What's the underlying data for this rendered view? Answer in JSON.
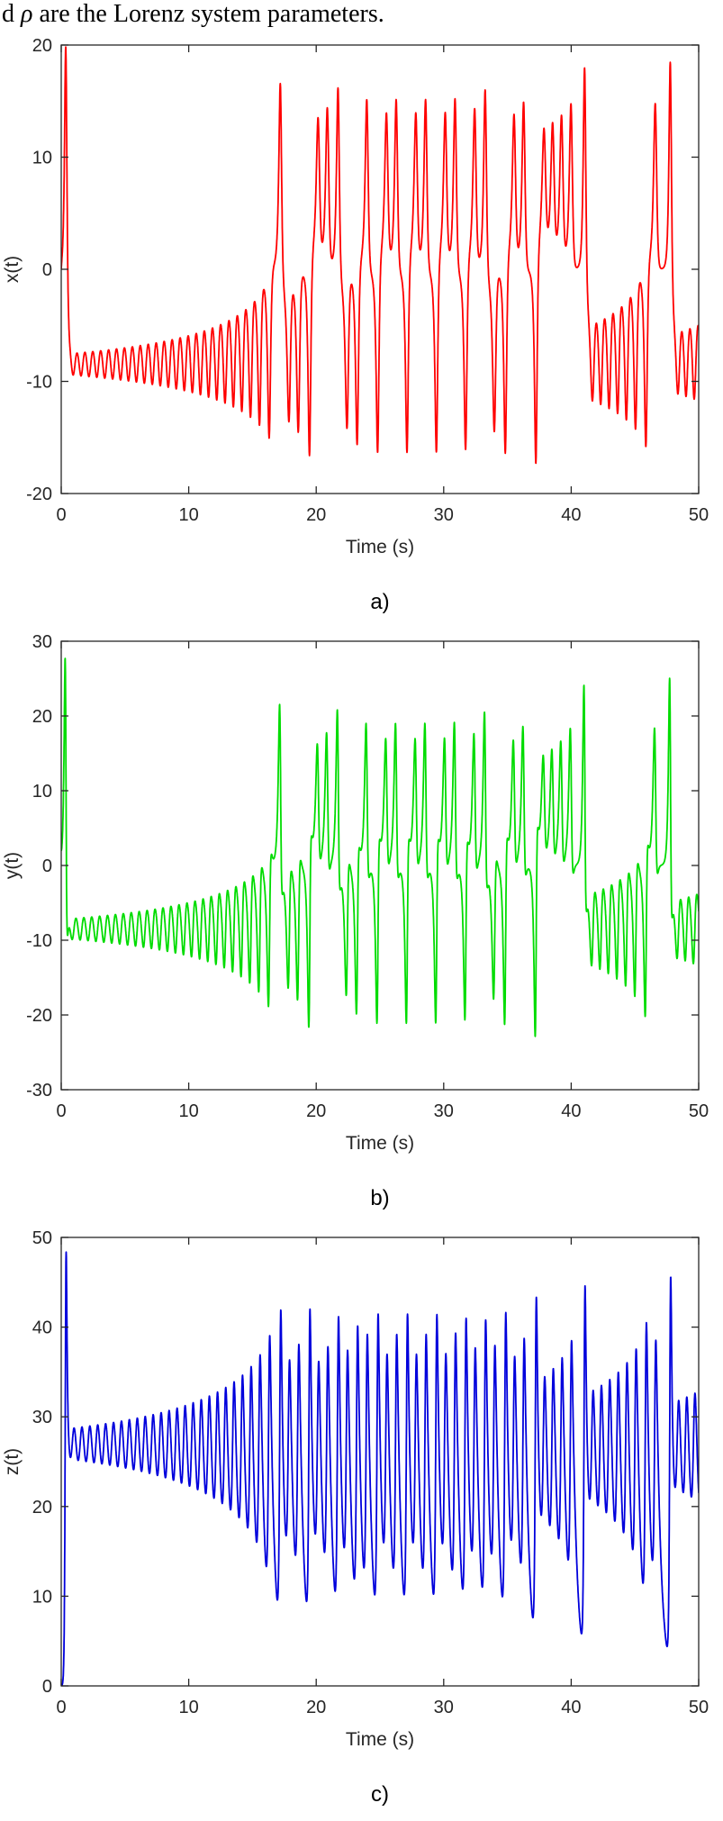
{
  "page": {
    "background": "#ffffff"
  },
  "top_caption": {
    "prefix": "d ",
    "symbol": "ρ",
    "rest": " are the Lorenz system parameters."
  },
  "chart_data": {
    "type": "line",
    "layout": "three stacked time-series panels, no grid, boxed axes with inward ticks",
    "xlabel": "Time (s)",
    "xlim": [
      0,
      50
    ],
    "xticks": [
      0,
      10,
      20,
      30,
      40,
      50
    ],
    "grid": false,
    "axis_color": "#262626",
    "background": "#ffffff",
    "generator": {
      "system": "lorenz",
      "equations": [
        "dx/dt = sigma*(y - x)",
        "dy/dt = x*(rho - z) - y",
        "dz/dt = x*y - beta*z"
      ],
      "sigma": 10,
      "rho": 28,
      "beta": 2.6666667,
      "initial_state": [
        0,
        2,
        0
      ],
      "t_span": [
        0,
        50
      ],
      "dt": 0.002,
      "sample_every": 5
    },
    "panels": [
      {
        "id": "a",
        "caption": "a)",
        "series": "x(t)",
        "ylabel": "x(t)",
        "color": "#ff0000",
        "ylim": [
          -20,
          20
        ],
        "yticks": [
          -20,
          -10,
          0,
          10,
          20
        ],
        "xlabel": "Time (s)",
        "xticks": [
          0,
          10,
          20,
          30,
          40,
          50
        ]
      },
      {
        "id": "b",
        "caption": "b)",
        "series": "y(t)",
        "ylabel": "y(t)",
        "color": "#00dc00",
        "ylim": [
          -30,
          30
        ],
        "yticks": [
          -30,
          -20,
          -10,
          0,
          10,
          20,
          30
        ],
        "xlabel": "Time (s)",
        "xticks": [
          0,
          10,
          20,
          30,
          40,
          50
        ]
      },
      {
        "id": "c",
        "caption": "c)",
        "series": "z(t)",
        "ylabel": "z(t)",
        "color": "#0000dc",
        "ylim": [
          0,
          50
        ],
        "yticks": [
          0,
          10,
          20,
          30,
          40,
          50
        ],
        "xlabel": "Time (s)",
        "xticks": [
          0,
          10,
          20,
          30,
          40,
          50
        ]
      }
    ]
  }
}
